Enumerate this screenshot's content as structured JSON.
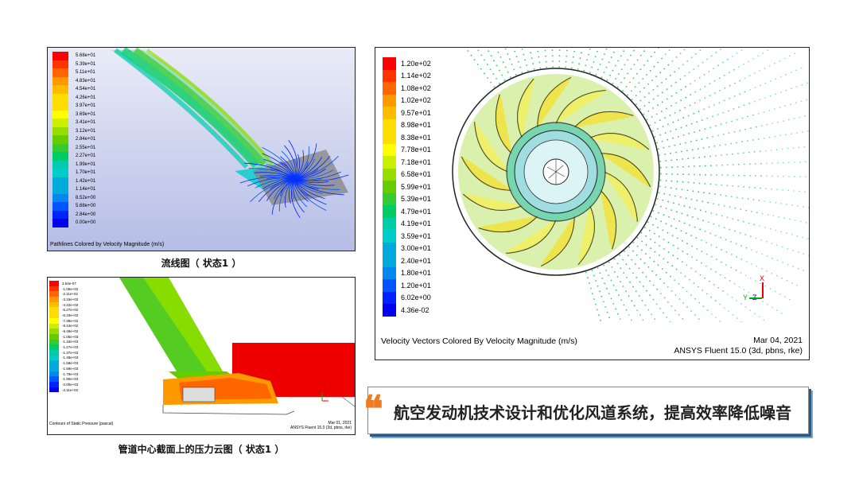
{
  "palette": [
    "#ff0000",
    "#ff3300",
    "#ff6600",
    "#ff9900",
    "#ffbb00",
    "#ffdd00",
    "#ffff00",
    "#ccee00",
    "#99dd00",
    "#66cc00",
    "#33cc33",
    "#00cc66",
    "#00ccaa",
    "#00cccc",
    "#00aadd",
    "#0088ee",
    "#0055ff",
    "#0022ff",
    "#0000ee"
  ],
  "pathlines": {
    "legend": [
      "5.68e+01",
      "5.39e+01",
      "5.11e+01",
      "4.83e+01",
      "4.54e+01",
      "4.26e+01",
      "3.97e+01",
      "3.69e+01",
      "3.41e+01",
      "3.12e+01",
      "2.84e+01",
      "2.55e+01",
      "2.27e+01",
      "1.99e+01",
      "1.70e+01",
      "1.42e+01",
      "1.14e+01",
      "8.52e+00",
      "5.68e+00",
      "2.84e+00",
      "0.00e+00"
    ],
    "footer": "Pathlines Colored by Velocity Magnitude (m/s)",
    "caption": "流线图（ 状态1 ）"
  },
  "pressure": {
    "legend": [
      "3.54e-07",
      "-1.05e+02",
      "-2.11e+02",
      "-3.16e+02",
      "-4.22e+02",
      "-5.27e+02",
      "-6.33e+02",
      "-7.38e+02",
      "-8.44e+02",
      "-9.49e+02",
      "-1.05e+03",
      "-1.16e+03",
      "-1.27e+03",
      "-1.37e+03",
      "-1.48e+03",
      "-1.58e+03",
      "-1.69e+03",
      "-1.79e+03",
      "-1.90e+03",
      "-2.00e+03",
      "-2.11e+03"
    ],
    "footer_left": "Contours of Static Pressure (pascal)",
    "footer_date": "Mar 01, 2021",
    "footer_ver": "ANSYS Fluent 15.0 (3d, pbns, rke)",
    "caption": "管道中心截面上的压力云图（ 状态1 ）"
  },
  "vectors": {
    "legend": [
      "1.20e+02",
      "1.14e+02",
      "1.08e+02",
      "1.02e+02",
      "9.57e+01",
      "8.98e+01",
      "8.38e+01",
      "7.78e+01",
      "7.18e+01",
      "6.58e+01",
      "5.99e+01",
      "5.39e+01",
      "4.79e+01",
      "4.19e+01",
      "3.59e+01",
      "3.00e+01",
      "2.40e+01",
      "1.80e+01",
      "1.20e+01",
      "6.02e+00",
      "4.36e-02"
    ],
    "footer_left": "Velocity Vectors Colored By Velocity Magnitude (m/s)",
    "footer_date": "Mar 04, 2021",
    "footer_ver": "ANSYS Fluent 15.0 (3d, pbns, rke)",
    "axes": {
      "x": "X",
      "y": "Y",
      "z": "Z"
    }
  },
  "quote": {
    "mark": "❝",
    "text": "航空发动机技术设计和优化风道系统，提高效率降低噪音"
  }
}
